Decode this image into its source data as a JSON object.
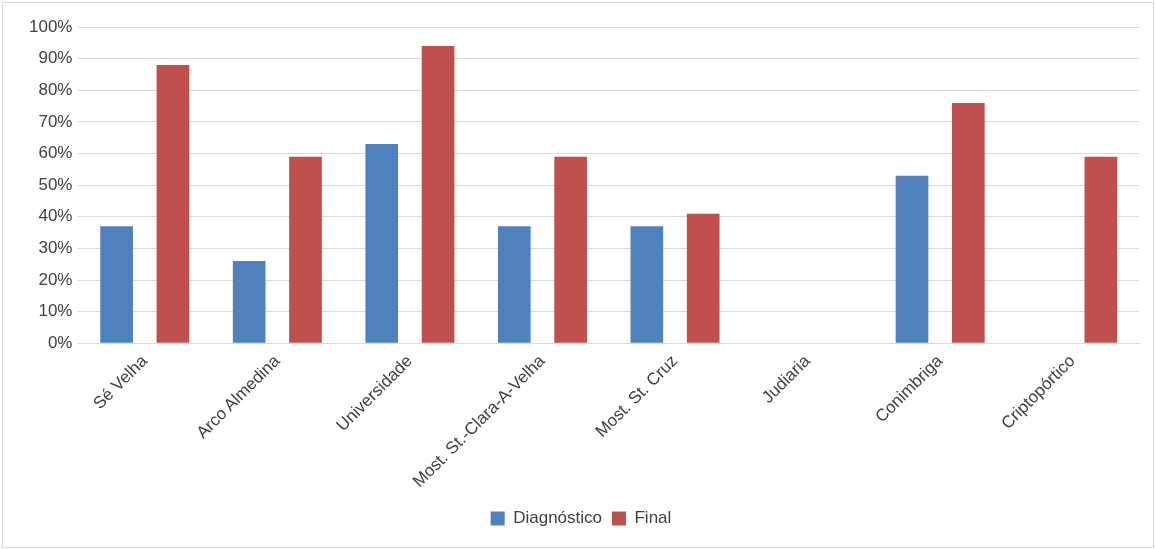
{
  "chart_data": {
    "type": "bar",
    "categories": [
      "Sé Velha",
      "Arco Almedina",
      "Universidade",
      "Most. St.-Clara-A-Velha",
      "Most. St. Cruz",
      "Judiaria",
      "Conimbriga",
      "Criptopórtico"
    ],
    "series": [
      {
        "name": "Diagnóstico",
        "color": "#4f81bd",
        "values": [
          37,
          26,
          63,
          37,
          37,
          0,
          53,
          0
        ]
      },
      {
        "name": "Final",
        "color": "#c0504d",
        "values": [
          88,
          59,
          94,
          59,
          41,
          0,
          76,
          59
        ]
      }
    ],
    "ylim": [
      0,
      100
    ],
    "yticks": [
      {
        "value": 0,
        "label": "0%"
      },
      {
        "value": 10,
        "label": "10%"
      },
      {
        "value": 20,
        "label": "20%"
      },
      {
        "value": 30,
        "label": "30%"
      },
      {
        "value": 40,
        "label": "40%"
      },
      {
        "value": 50,
        "label": "50%"
      },
      {
        "value": 60,
        "label": "60%"
      },
      {
        "value": 70,
        "label": "70%"
      },
      {
        "value": 80,
        "label": "80%"
      },
      {
        "value": 90,
        "label": "90%"
      },
      {
        "value": 100,
        "label": "100%"
      }
    ],
    "grid": "y",
    "legend": "bottom"
  }
}
